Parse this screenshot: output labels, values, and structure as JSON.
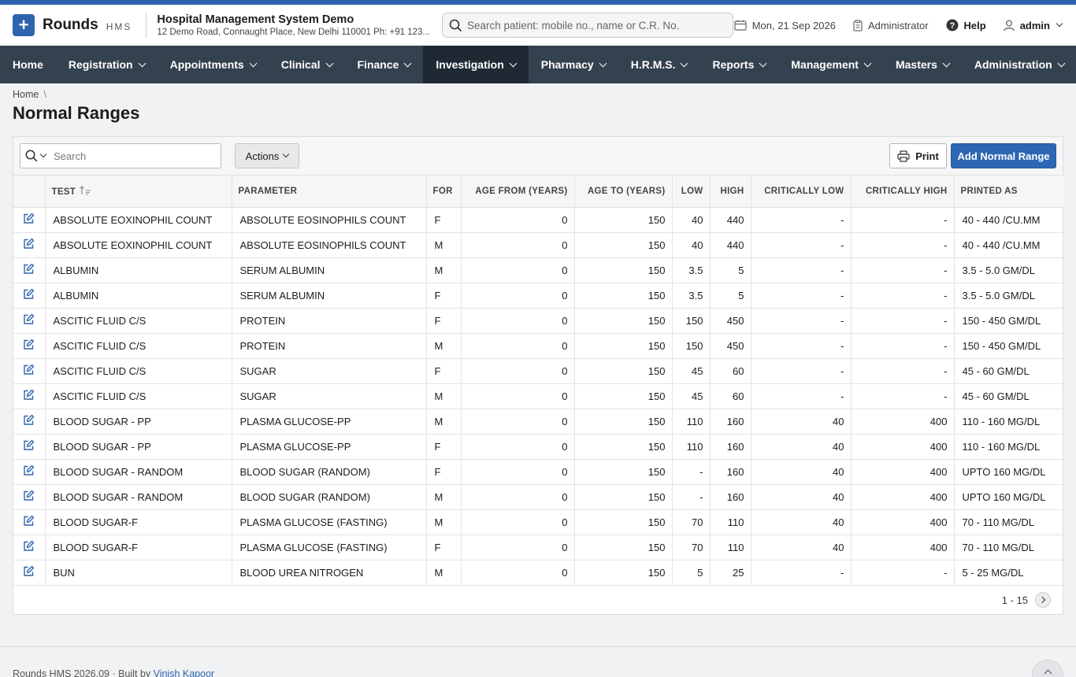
{
  "header": {
    "brand": "Rounds",
    "brand_sub": "HMS",
    "hospital_name": "Hospital Management System Demo",
    "hospital_address": "12 Demo Road, Connaught Place, New Delhi 110001 Ph: +91 123...",
    "search_placeholder": "Search patient: mobile no., name or C.R. No.",
    "date": "Mon, 21 Sep 2026",
    "role": "Administrator",
    "help": "Help",
    "user": "admin"
  },
  "nav": [
    {
      "label": "Home",
      "dropdown": false,
      "active": false
    },
    {
      "label": "Registration",
      "dropdown": true,
      "active": false
    },
    {
      "label": "Appointments",
      "dropdown": true,
      "active": false
    },
    {
      "label": "Clinical",
      "dropdown": true,
      "active": false
    },
    {
      "label": "Finance",
      "dropdown": true,
      "active": false
    },
    {
      "label": "Investigation",
      "dropdown": true,
      "active": true
    },
    {
      "label": "Pharmacy",
      "dropdown": true,
      "active": false
    },
    {
      "label": "H.R.M.S.",
      "dropdown": true,
      "active": false
    },
    {
      "label": "Reports",
      "dropdown": true,
      "active": false
    },
    {
      "label": "Management",
      "dropdown": true,
      "active": false
    },
    {
      "label": "Masters",
      "dropdown": true,
      "active": false
    },
    {
      "label": "Administration",
      "dropdown": true,
      "active": false
    }
  ],
  "breadcrumb": {
    "home": "Home",
    "sep": "\\"
  },
  "page_title": "Normal Ranges",
  "toolbar": {
    "search_placeholder": "Search",
    "actions_label": "Actions",
    "print_label": "Print",
    "add_label": "Add Normal Range"
  },
  "table": {
    "columns": [
      "Test",
      "Parameter",
      "For",
      "Age From (Years)",
      "Age To (Years)",
      "Low",
      "High",
      "Critically Low",
      "Critically High",
      "Printed As"
    ],
    "rows": [
      [
        "ABSOLUTE EOXINOPHIL COUNT",
        "ABSOLUTE EOSINOPHILS COUNT",
        "F",
        "0",
        "150",
        "40",
        "440",
        "-",
        "-",
        "40 - 440 /CU.MM"
      ],
      [
        "ABSOLUTE EOXINOPHIL COUNT",
        "ABSOLUTE EOSINOPHILS COUNT",
        "M",
        "0",
        "150",
        "40",
        "440",
        "-",
        "-",
        "40 - 440 /CU.MM"
      ],
      [
        "ALBUMIN",
        "SERUM ALBUMIN",
        "M",
        "0",
        "150",
        "3.5",
        "5",
        "-",
        "-",
        "3.5 - 5.0 GM/DL"
      ],
      [
        "ALBUMIN",
        "SERUM ALBUMIN",
        "F",
        "0",
        "150",
        "3.5",
        "5",
        "-",
        "-",
        "3.5 - 5.0 GM/DL"
      ],
      [
        "ASCITIC FLUID C/S",
        "PROTEIN",
        "F",
        "0",
        "150",
        "150",
        "450",
        "-",
        "-",
        "150 - 450 GM/DL"
      ],
      [
        "ASCITIC FLUID C/S",
        "PROTEIN",
        "M",
        "0",
        "150",
        "150",
        "450",
        "-",
        "-",
        "150 - 450 GM/DL"
      ],
      [
        "ASCITIC FLUID C/S",
        "SUGAR",
        "F",
        "0",
        "150",
        "45",
        "60",
        "-",
        "-",
        "45 - 60 GM/DL"
      ],
      [
        "ASCITIC FLUID C/S",
        "SUGAR",
        "M",
        "0",
        "150",
        "45",
        "60",
        "-",
        "-",
        "45 - 60 GM/DL"
      ],
      [
        "BLOOD SUGAR - PP",
        "PLASMA GLUCOSE-PP",
        "M",
        "0",
        "150",
        "110",
        "160",
        "40",
        "400",
        "110 - 160 MG/DL"
      ],
      [
        "BLOOD SUGAR - PP",
        "PLASMA GLUCOSE-PP",
        "F",
        "0",
        "150",
        "110",
        "160",
        "40",
        "400",
        "110 - 160 MG/DL"
      ],
      [
        "BLOOD SUGAR - RANDOM",
        "BLOOD SUGAR (RANDOM)",
        "F",
        "0",
        "150",
        "-",
        "160",
        "40",
        "400",
        "UPTO 160 MG/DL"
      ],
      [
        "BLOOD SUGAR - RANDOM",
        "BLOOD SUGAR (RANDOM)",
        "M",
        "0",
        "150",
        "-",
        "160",
        "40",
        "400",
        "UPTO 160 MG/DL"
      ],
      [
        "BLOOD SUGAR-F",
        "PLASMA GLUCOSE (FASTING)",
        "M",
        "0",
        "150",
        "70",
        "110",
        "40",
        "400",
        "70 - 110 MG/DL"
      ],
      [
        "BLOOD SUGAR-F",
        "PLASMA GLUCOSE (FASTING)",
        "F",
        "0",
        "150",
        "70",
        "110",
        "40",
        "400",
        "70 - 110 MG/DL"
      ],
      [
        "BUN",
        "BLOOD UREA NITROGEN",
        "M",
        "0",
        "150",
        "5",
        "25",
        "-",
        "-",
        "5 - 25 MG/DL"
      ]
    ]
  },
  "pager": {
    "range": "1 - 15"
  },
  "footer": {
    "text": "Rounds HMS 2026.09 · Built by",
    "author": "Vinish Kapoor"
  }
}
